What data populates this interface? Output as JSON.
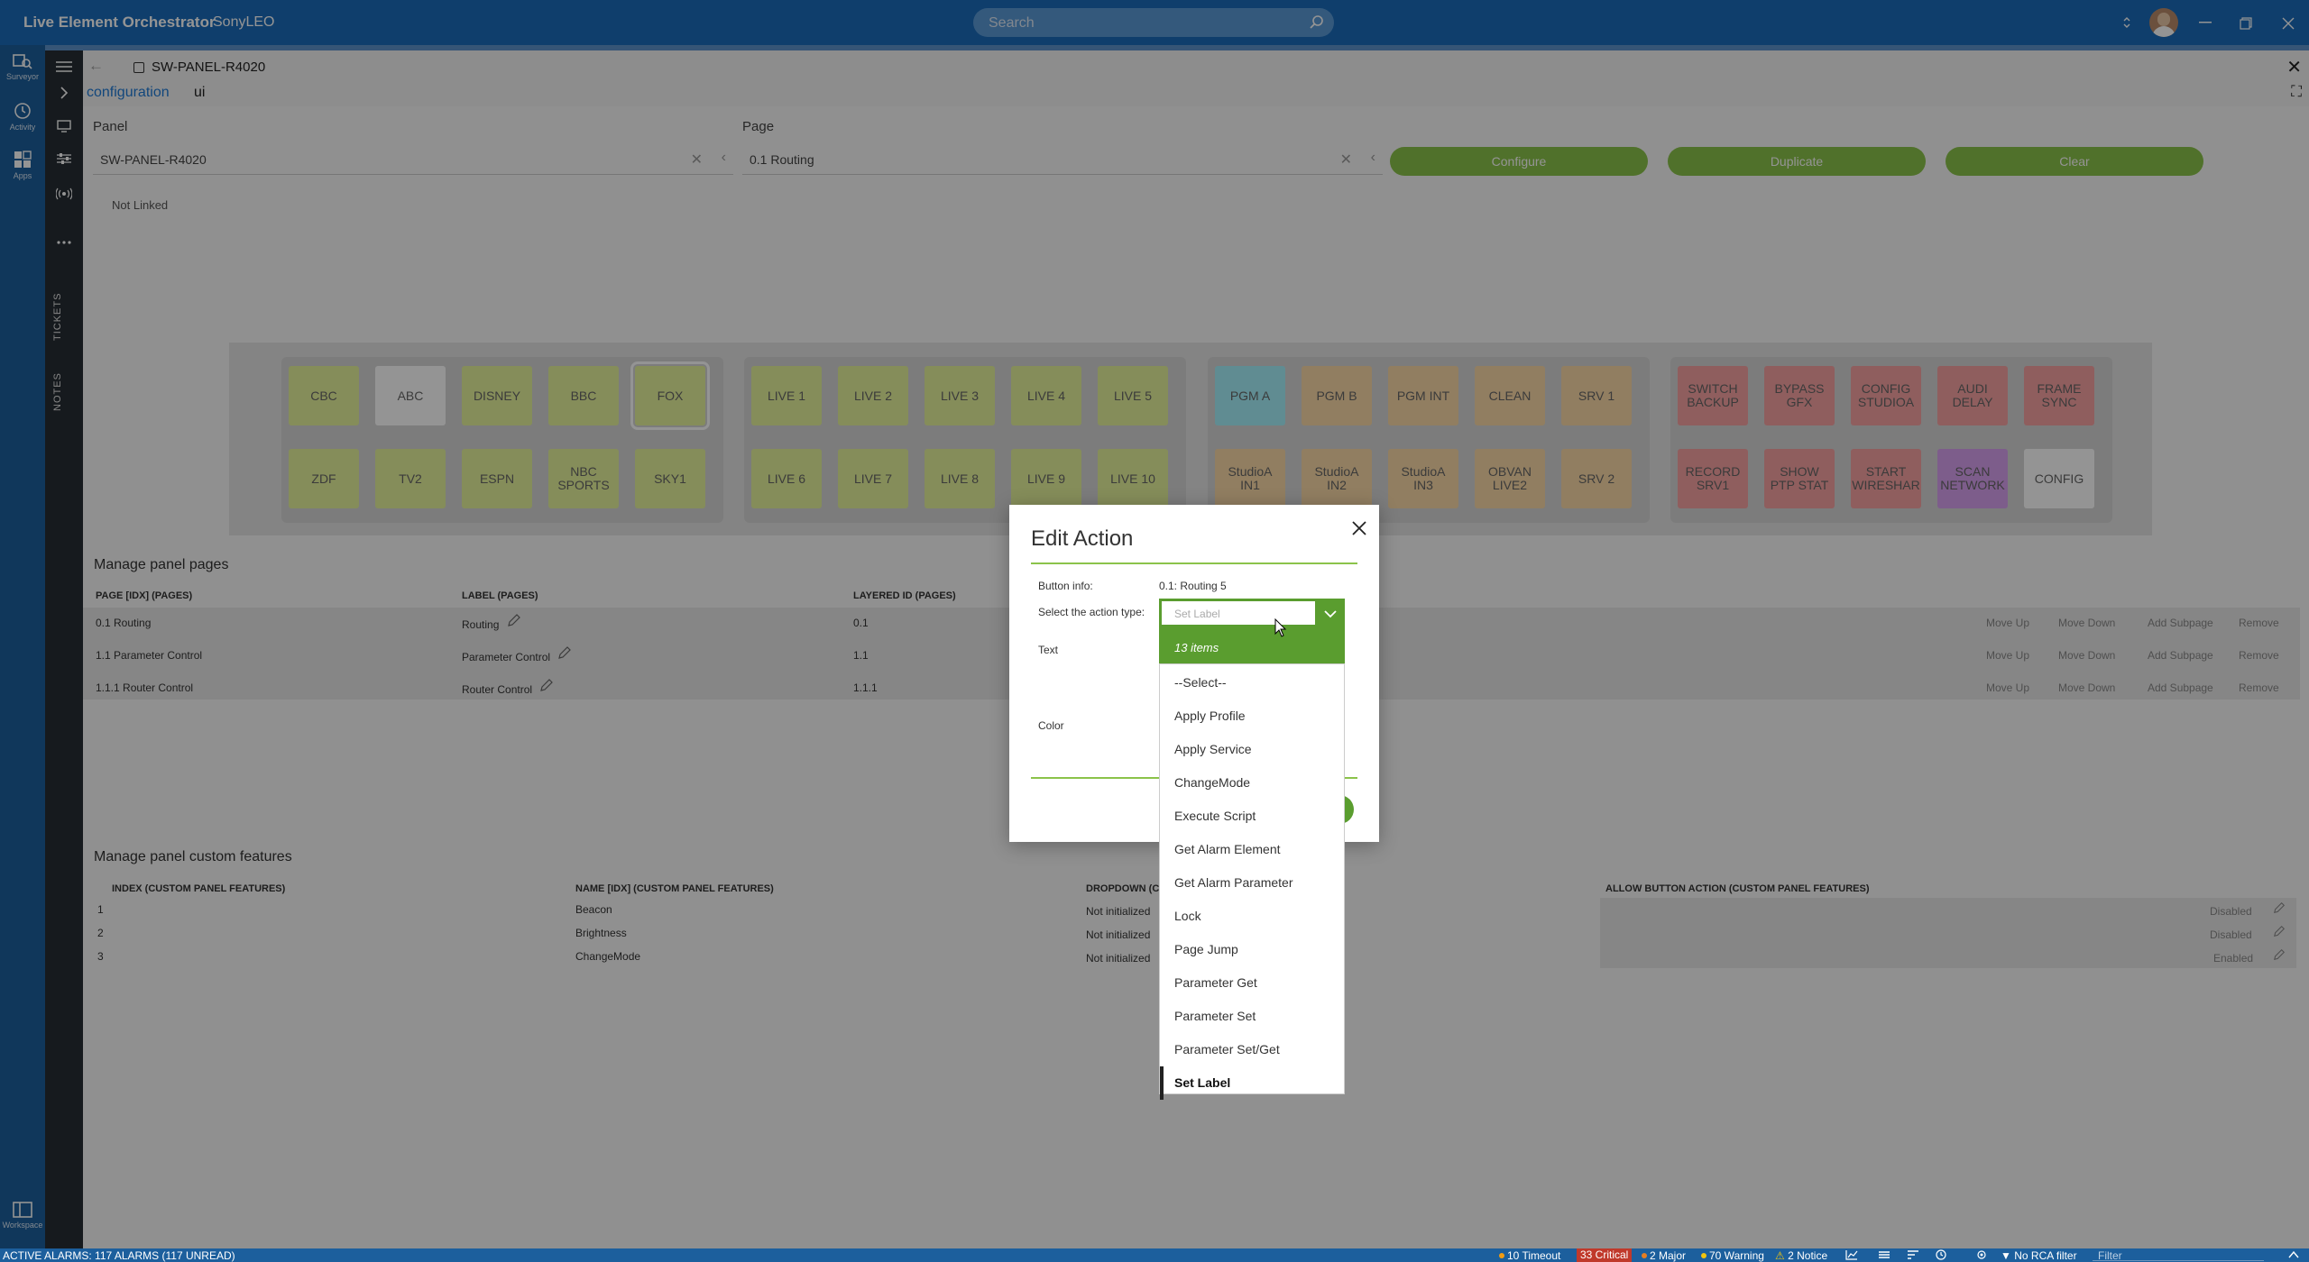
{
  "app": {
    "title": "Live Element Orchestrator",
    "system": "SonyLEO",
    "search_placeholder": "Search"
  },
  "rail": {
    "items": [
      {
        "label": "Surveyor",
        "icon": "surveyor-icon"
      },
      {
        "label": "Activity",
        "icon": "activity-icon"
      },
      {
        "label": "Apps",
        "icon": "apps-icon"
      }
    ],
    "workspace": "Workspace"
  },
  "rail2": {
    "tickets": "TICKETS",
    "notes": "NOTES"
  },
  "tab": {
    "title": "SW-PANEL-R4020",
    "tabs": [
      "configuration",
      "ui"
    ]
  },
  "panel": {
    "panel_label": "Panel",
    "panel_value": "SW-PANEL-R4020",
    "page_label": "Page",
    "page_value": "0.1 Routing",
    "not_linked": "Not Linked",
    "buttons": [
      "Configure",
      "Duplicate",
      "Clear"
    ]
  },
  "grid": {
    "group1": {
      "row1": [
        "CBC",
        "ABC",
        "DISNEY",
        "BBC",
        "FOX"
      ],
      "row2": [
        "ZDF",
        "TV2",
        "ESPN",
        "NBC\nSPORTS",
        "SKY1"
      ]
    },
    "group2": {
      "row1": [
        "LIVE 1",
        "LIVE 2",
        "LIVE 3",
        "LIVE 4",
        "LIVE 5"
      ],
      "row2": [
        "LIVE 6",
        "LIVE 7",
        "LIVE 8",
        "LIVE 9",
        "LIVE 10"
      ]
    },
    "group3": {
      "row1": [
        "PGM A",
        "PGM B",
        "PGM INT",
        "CLEAN",
        "SRV 1"
      ],
      "row2": [
        "StudioA\nIN1",
        "StudioA\nIN2",
        "StudioA\nIN3",
        "OBVAN\nLIVE2",
        "SRV 2"
      ]
    },
    "group4": {
      "row1": [
        "SWITCH\nBACKUP",
        "BYPASS\nGFX",
        "CONFIG\nSTUDIOA",
        "AUDI\nDELAY",
        "FRAME\nSYNC"
      ],
      "row2": [
        "RECORD\nSRV1",
        "SHOW\nPTP STAT",
        "START\nWIRESHAR",
        "SCAN\nNETWORK",
        "CONFIG"
      ]
    },
    "colors": {
      "green": "#e6f39b",
      "white": "#ffffff",
      "cyan": "#a6f2fb",
      "orange": "#fad9a8",
      "red": "#f7a3a3",
      "purple": "#d7a0f0"
    }
  },
  "pages_table": {
    "title": "Manage panel pages",
    "headers": [
      "PAGE [IDX] (PAGES)",
      "LABEL (PAGES)",
      "LAYERED ID (PAGES)"
    ],
    "rows": [
      {
        "page": "0.1 Routing",
        "label": "Routing",
        "id": "0.1"
      },
      {
        "page": "1.1 Parameter Control",
        "label": "Parameter Control",
        "id": "1.1"
      },
      {
        "page": "1.1.1 Router Control",
        "label": "Router Control",
        "id": "1.1.1"
      }
    ],
    "actions": [
      "Move Up",
      "Move Down",
      "Add Subpage",
      "Remove"
    ]
  },
  "features_table": {
    "title": "Manage panel custom features",
    "headers": [
      "INDEX (CUSTOM PANEL FEATURES)",
      "NAME [IDX] (CUSTOM PANEL FEATURES)",
      "DROPDOWN (C",
      "ALLOW BUTTON ACTION (CUSTOM PANEL FEATURES)"
    ],
    "rows": [
      {
        "index": "1",
        "name": "Beacon",
        "dropdown": "Not initialized",
        "allow": "Disabled"
      },
      {
        "index": "2",
        "name": "Brightness",
        "dropdown": "Not initialized",
        "allow": "Disabled"
      },
      {
        "index": "3",
        "name": "ChangeMode",
        "dropdown": "Not initialized",
        "allow": "Enabled"
      }
    ]
  },
  "dialog": {
    "title": "Edit Action",
    "button_info_label": "Button info:",
    "button_info_value": "0.1: Routing 5",
    "action_type_label": "Select the action type:",
    "text_label": "Text",
    "color_label": "Color"
  },
  "dropdown": {
    "input_value": "Set Label",
    "count": "13 items",
    "items": [
      "--Select--",
      "Apply Profile",
      "Apply Service",
      "ChangeMode",
      "Execute Script",
      "Get Alarm Element",
      "Get Alarm Parameter",
      "Lock",
      "Page Jump",
      "Parameter Get",
      "Parameter Set",
      "Parameter Set/Get",
      "Set Label"
    ],
    "selected": "Set Label"
  },
  "status": {
    "alarms": "ACTIVE ALARMS: 117 ALARMS (117 UNREAD)",
    "timeout": "10 Timeout",
    "critical": "33 Critical",
    "major": "2 Major",
    "warning": "70 Warning",
    "notice": "2 Notice",
    "rca": "No RCA filter",
    "filter_placeholder": "Filter"
  }
}
